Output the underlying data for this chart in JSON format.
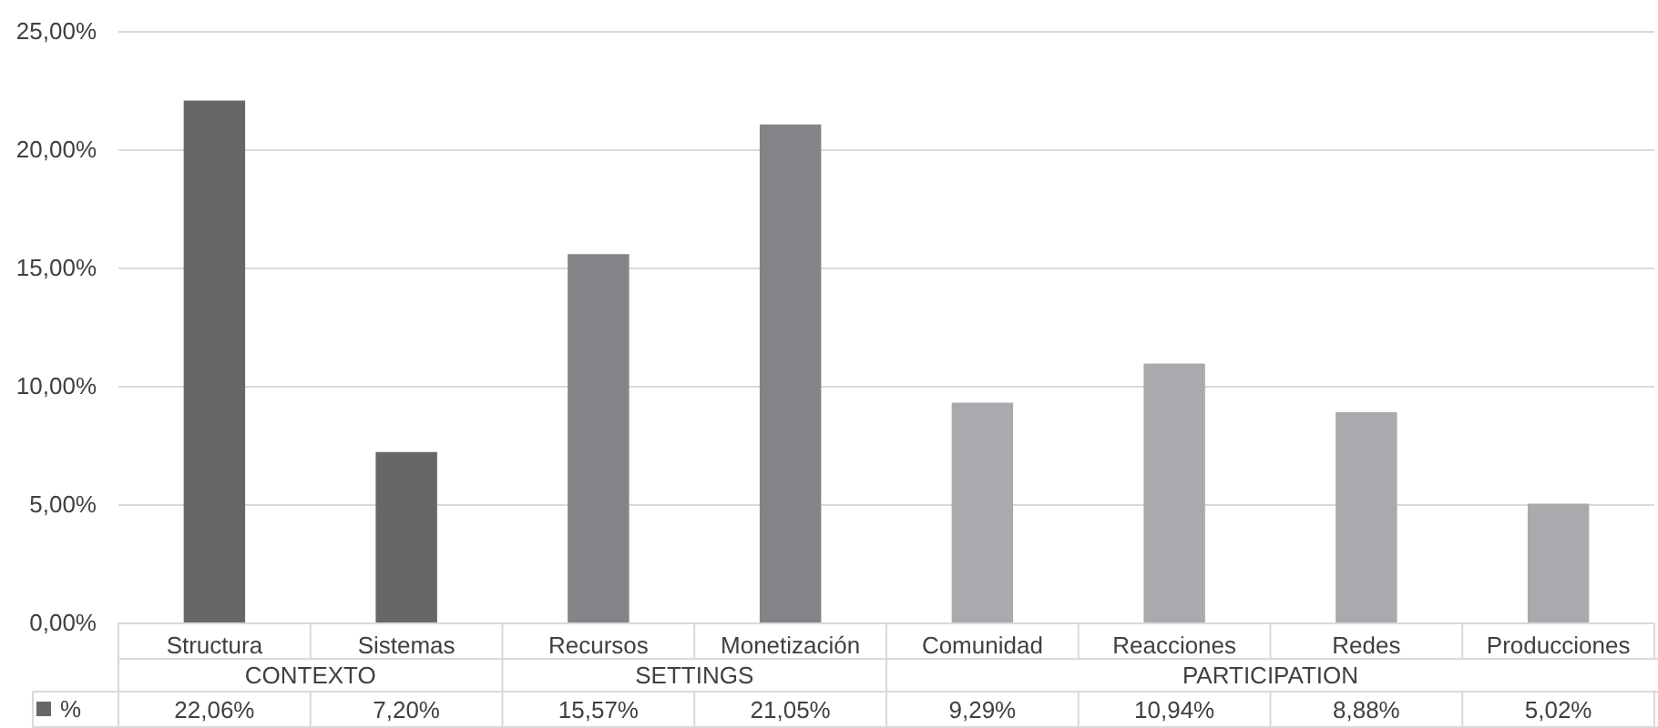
{
  "chart_data": {
    "type": "bar",
    "categories": [
      "Structura",
      "Sistemas",
      "Recursos",
      "Monetización",
      "Comunidad",
      "Reacciones",
      "Redes",
      "Producciones"
    ],
    "series": [
      {
        "name": "%",
        "values": [
          22.06,
          7.2,
          15.57,
          21.05,
          9.29,
          10.94,
          8.88,
          5.02
        ],
        "colors": [
          "#666769",
          "#666769",
          "#838487",
          "#838487",
          "#a9aaad",
          "#a9aaad",
          "#a9aaad",
          "#a9aaad"
        ],
        "value_labels": [
          "22,06%",
          "7,20%",
          "15,57%",
          "21,05%",
          "9,29%",
          "10,94%",
          "8,88%",
          "5,02%"
        ]
      }
    ],
    "annotations": [
      "CONTEXTO",
      "SETTINGS",
      "PARTICIPATION"
    ],
    "ylim": [
      0,
      25
    ],
    "yticks": [
      {
        "value": 0,
        "label": "0,00%"
      },
      {
        "value": 5,
        "label": "5,00%"
      },
      {
        "value": 10,
        "label": "10,00%"
      },
      {
        "value": 15,
        "label": "15,00%"
      },
      {
        "value": 20,
        "label": "20,00%"
      },
      {
        "value": 25,
        "label": "25,00%"
      }
    ],
    "grid": "y",
    "legend": "bottom left"
  }
}
